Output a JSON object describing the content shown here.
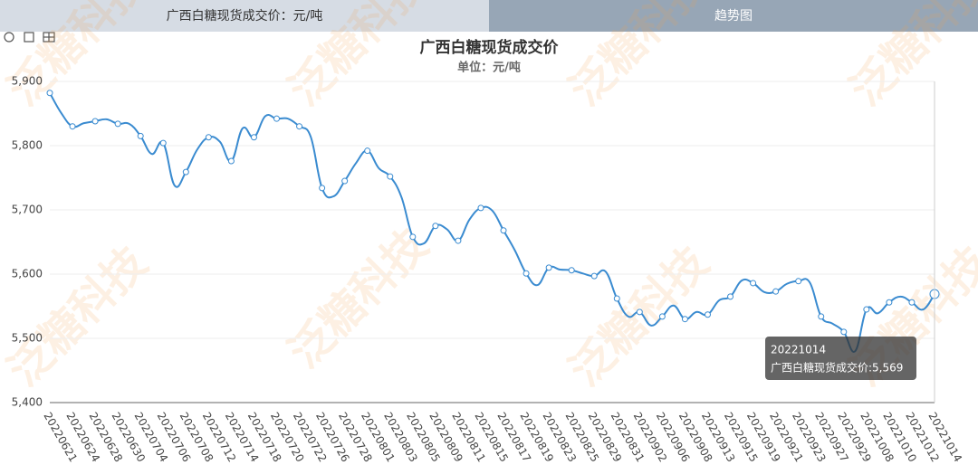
{
  "tabs": [
    "广西白糖现货成交价：元/吨",
    "趋势图"
  ],
  "watermark": "泛糖科技",
  "chart_data": {
    "type": "line",
    "title": "广西白糖现货成交价",
    "subtitle": "单位：元/吨",
    "categories": [
      "20220621",
      null,
      "20220624",
      null,
      "20220628",
      null,
      "20220630",
      null,
      "20220704",
      null,
      "20220706",
      null,
      "20220708",
      null,
      "20220712",
      null,
      "20220714",
      null,
      "20220718",
      null,
      "20220720",
      null,
      "20220722",
      null,
      "20220726",
      null,
      "20220728",
      null,
      "20220801",
      null,
      "20220803",
      null,
      "20220805",
      null,
      "20220809",
      null,
      "20220811",
      null,
      "20220815",
      null,
      "20220817",
      null,
      "20220819",
      null,
      "20220823",
      null,
      "20220825",
      null,
      "20220829",
      null,
      "20220831",
      null,
      "20220902",
      null,
      "20220906",
      null,
      "20220908",
      null,
      "20220913",
      null,
      "20220915",
      null,
      "20220919",
      null,
      "20220921",
      null,
      "20220923",
      null,
      "20220927",
      null,
      "20220929",
      null,
      "20221008",
      null,
      "20221010",
      null,
      "20221012",
      null,
      "20221014"
    ],
    "series": [
      {
        "name": "广西白糖现货成交价",
        "color": "#3a8bd0",
        "values": [
          5882,
          5851,
          5830,
          5835,
          5838,
          5841,
          5834,
          5834,
          5815,
          5787,
          5804,
          5738,
          5759,
          5794,
          5813,
          5806,
          5776,
          5827,
          5813,
          5846,
          5842,
          5842,
          5830,
          5814,
          5734,
          5721,
          5745,
          5773,
          5792,
          5765,
          5752,
          5720,
          5658,
          5648,
          5675,
          5670,
          5652,
          5685,
          5703,
          5699,
          5668,
          5637,
          5601,
          5583,
          5610,
          5607,
          5606,
          5601,
          5597,
          5604,
          5562,
          5534,
          5541,
          5520,
          5534,
          5551,
          5530,
          5541,
          5537,
          5559,
          5565,
          5590,
          5586,
          5572,
          5573,
          5585,
          5589,
          5587,
          5534,
          5523,
          5510,
          5480,
          5545,
          5539,
          5556,
          5565,
          5556,
          5545,
          5569
        ]
      }
    ],
    "ylim": [
      5400,
      5900
    ],
    "yticks": [
      {
        "value": 5400,
        "label": "5,400"
      },
      {
        "value": 5500,
        "label": "5,500"
      },
      {
        "value": 5600,
        "label": "5,600"
      },
      {
        "value": 5700,
        "label": "5,700"
      },
      {
        "value": 5800,
        "label": "5,800"
      },
      {
        "value": 5900,
        "label": "5,900"
      }
    ],
    "grid": true,
    "tooltip": {
      "title": "20221014",
      "text": "广西白糖现货成交价:5,569"
    }
  }
}
